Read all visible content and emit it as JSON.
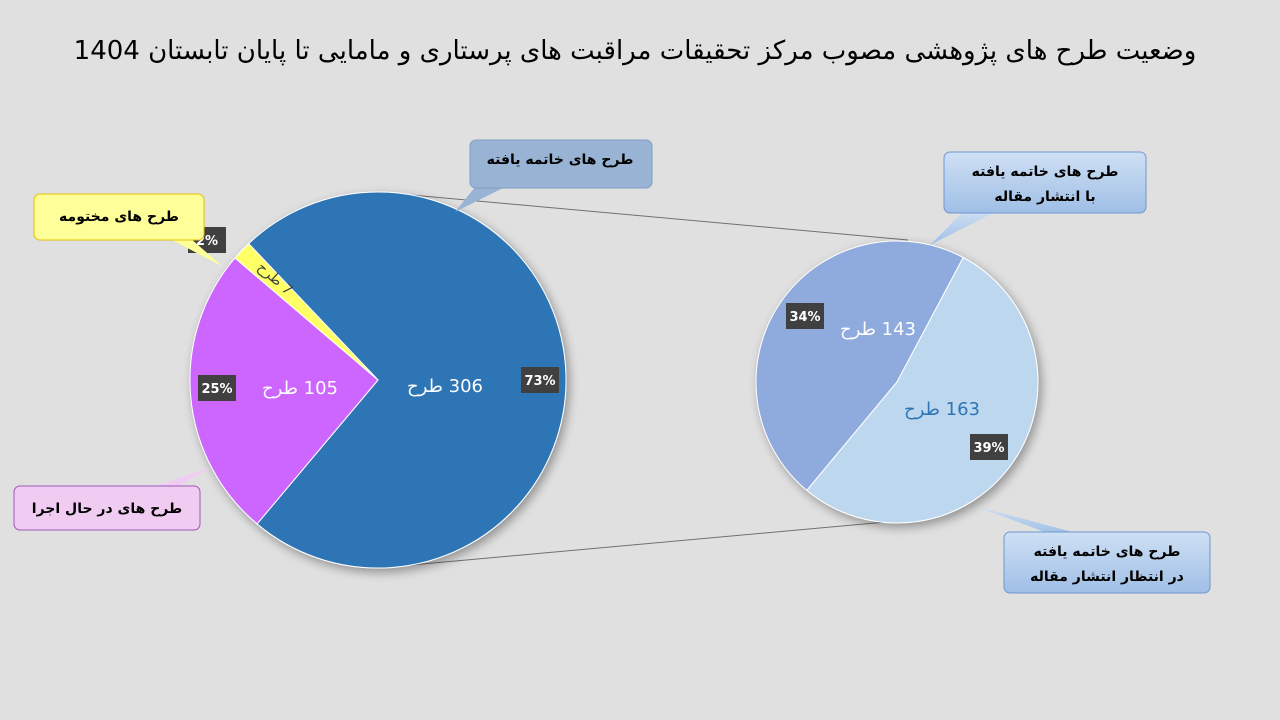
{
  "title": "وضعیت طرح های پژوهشی مصوب مرکز تحقیقات مراقبت های پرستاری و مامایی تا پایان تابستان 1404",
  "chart_data": [
    {
      "type": "pie",
      "unit_suffix": "طرح",
      "slices": [
        {
          "name": "طرح های خاتمه یافته",
          "value": 306,
          "percent": "73%",
          "color": "#2e75b6",
          "label": "306 طرح"
        },
        {
          "name": "طرح های در حال اجرا",
          "value": 105,
          "percent": "25%",
          "color": "#cc66ff",
          "label": "105 طرح"
        },
        {
          "name": "طرح های مختومه",
          "value": 7,
          "percent": "2%",
          "color": "#ffff66",
          "label": "7 طرح"
        }
      ]
    },
    {
      "type": "pie",
      "unit_suffix": "طرح",
      "slices": [
        {
          "name": "طرح های خاتمه یافته با انتشار مقاله",
          "value": 143,
          "percent": "34%",
          "color": "#8faadc",
          "label": "143 طرح"
        },
        {
          "name": "طرح های خاتمه یافته در انتظار انتشار مقاله",
          "value": 163,
          "percent": "39%",
          "color": "#bdd7ee",
          "label": "163 طرح"
        }
      ]
    }
  ],
  "callouts": {
    "finished": "طرح های خاتمه یافته",
    "closed": "طرح های مختومه",
    "ongoing": "طرح های در حال اجرا",
    "published_line1": "طرح های خاتمه یافته",
    "published_line2": "با انتشار مقاله",
    "awaiting_line1": "طرح های خاتمه یافته",
    "awaiting_line2": "در انتظار انتشار مقاله"
  }
}
